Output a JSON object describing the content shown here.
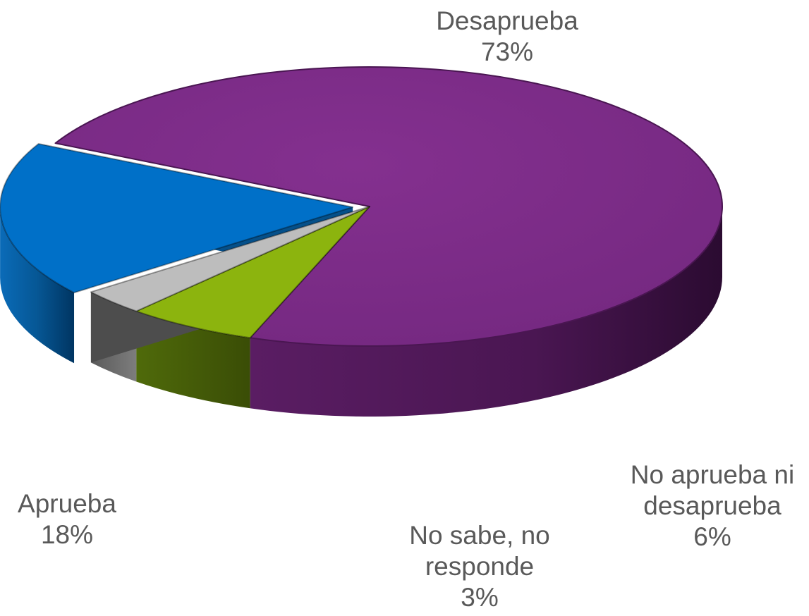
{
  "chart_data": {
    "type": "pie",
    "style": "3d",
    "title": "",
    "slices": [
      {
        "label": [
          "Desaprueba"
        ],
        "value": 73,
        "value_label": "73%",
        "color": "#7B2A86"
      },
      {
        "label": [
          "No aprueba ni",
          "desaprueba"
        ],
        "value": 6,
        "value_label": "6%",
        "color": "#8CB40E"
      },
      {
        "label": [
          "No sabe, no",
          "responde"
        ],
        "value": 3,
        "value_label": "3%",
        "color": "#BDBDBD"
      },
      {
        "label": [
          "Aprueba"
        ],
        "value": 18,
        "value_label": "18%",
        "color": "#0070C8"
      }
    ],
    "legend": "none",
    "data_labels": "outside, category name and percentage"
  }
}
